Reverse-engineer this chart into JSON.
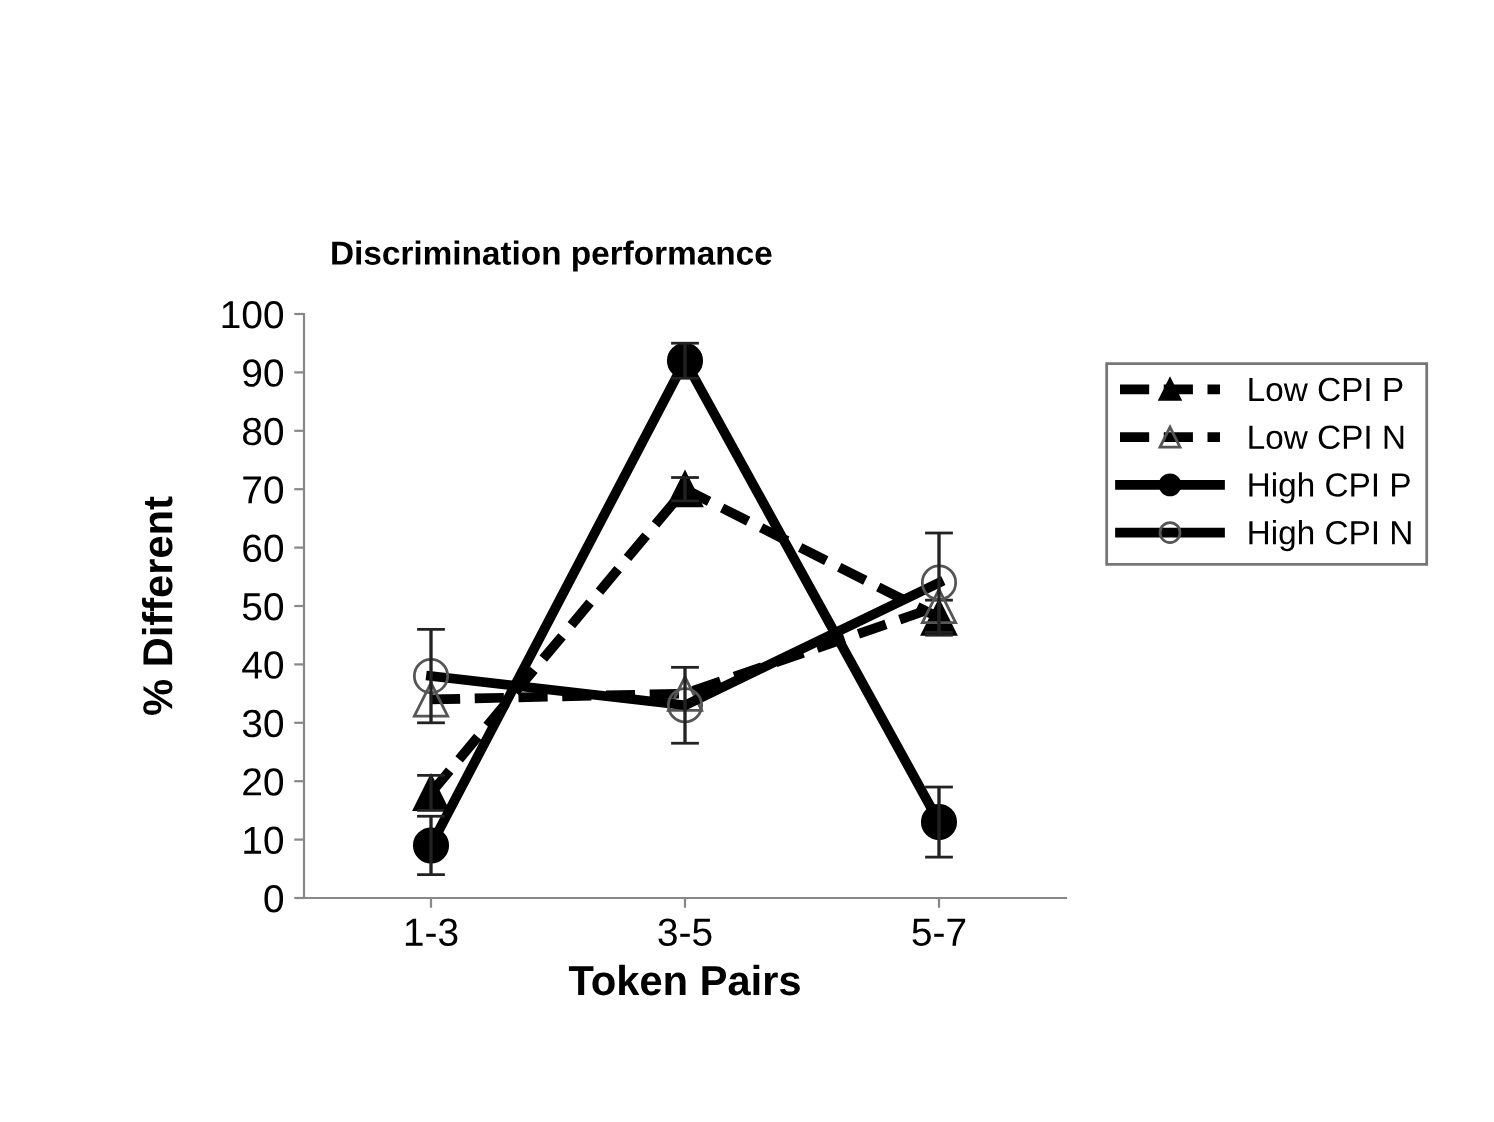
{
  "chart_data": {
    "type": "line",
    "title": "Discrimination performance",
    "xlabel": "Token Pairs",
    "ylabel": "% Different",
    "categories": [
      "1-3",
      "3-5",
      "5-7"
    ],
    "series": [
      {
        "name": "Low CPI P",
        "color": "#000000",
        "values": [
          18,
          70,
          48
        ],
        "errors": [
          3,
          2,
          3
        ],
        "marker": "triangle",
        "line_style": "dashed"
      },
      {
        "name": "Low CPI N",
        "color": "#000000",
        "values": [
          34,
          35,
          50
        ],
        "errors": [
          null,
          null,
          null
        ],
        "marker": "triangle",
        "line_style": "dashed"
      },
      {
        "name": "High CPI P",
        "color": "#000000",
        "values": [
          9,
          92,
          13
        ],
        "errors": [
          5,
          3,
          6
        ],
        "marker": "circle",
        "line_style": "solid"
      },
      {
        "name": "High CPI N",
        "color": "#000000",
        "values": [
          38,
          33,
          54
        ],
        "errors": [
          8,
          6.5,
          8.5
        ],
        "marker": "circle",
        "line_style": "solid"
      }
    ],
    "ylim": [
      0,
      100
    ],
    "yticks": [
      0,
      10,
      20,
      30,
      40,
      50,
      60,
      70,
      80,
      90,
      100
    ],
    "grid": false,
    "legend": "right"
  }
}
